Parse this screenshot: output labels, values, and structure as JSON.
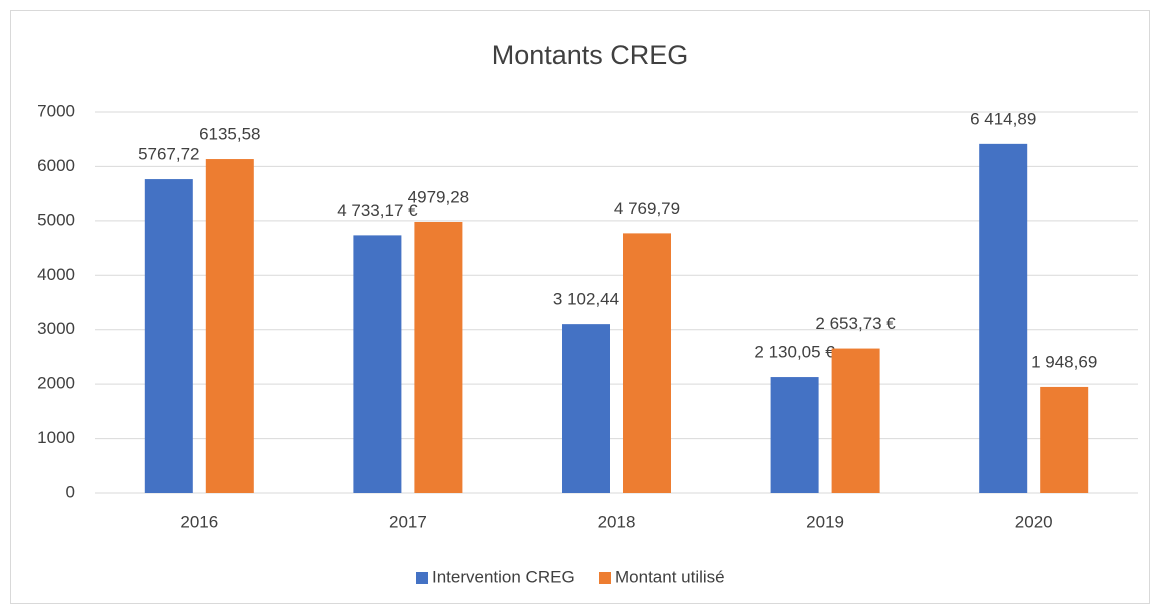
{
  "chart_data": {
    "type": "bar",
    "title": "Montants CREG",
    "categories": [
      "2016",
      "2017",
      "2018",
      "2019",
      "2020"
    ],
    "series": [
      {
        "name": "Intervention CREG",
        "color": "#4472c4",
        "values": [
          5767.72,
          4733.17,
          3102.44,
          2130.05,
          6414.89
        ],
        "value_labels": [
          "5767,72",
          "4 733,17 €",
          "3 102,44",
          "2 130,05 €",
          "6 414,89"
        ]
      },
      {
        "name": "Montant utilisé",
        "color": "#ed7d31",
        "values": [
          6135.58,
          4979.28,
          4769.79,
          2653.73,
          1948.69
        ],
        "value_labels": [
          "6135,58",
          "4979,28",
          "4 769,79",
          "2 653,73 €",
          "1 948,69"
        ]
      }
    ],
    "ylim": [
      0,
      7000
    ],
    "yticks": [
      0,
      1000,
      2000,
      3000,
      4000,
      5000,
      6000,
      7000
    ],
    "grid": true,
    "legend": "bottom"
  }
}
